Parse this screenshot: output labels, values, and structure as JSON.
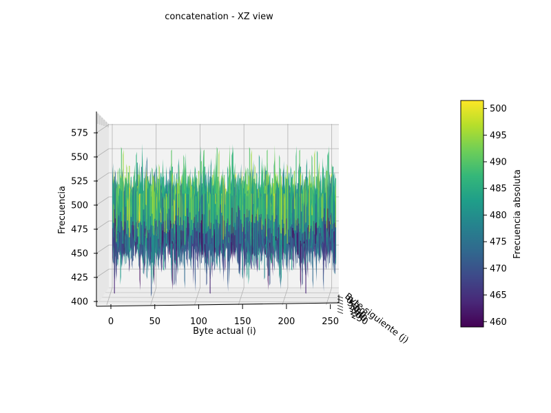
{
  "chart_data": {
    "type": "surface",
    "title": "concatenation - XZ view",
    "xlabel": "Byte actual (i)",
    "ylabel": "Byte siguiente (j)",
    "zlabel": "Frecuencia",
    "x_ticks": [
      "0",
      "50",
      "100",
      "150",
      "200",
      "250"
    ],
    "y_ticks": [
      "0",
      "50",
      "100",
      "150",
      "200",
      "250"
    ],
    "z_ticks": [
      "400",
      "425",
      "450",
      "475",
      "500",
      "525",
      "550",
      "575"
    ],
    "xlim": [
      0,
      255
    ],
    "ylim": [
      0,
      255
    ],
    "zlim": [
      400,
      585
    ],
    "view": "XZ (elevation 0, azimuth -90)",
    "colormap": "viridis",
    "colorbar": {
      "label": "Frecuencia absoluta",
      "ticks": [
        "460",
        "465",
        "470",
        "475",
        "480",
        "485",
        "490",
        "495",
        "500"
      ],
      "range": [
        459,
        501.5
      ]
    },
    "surface_summary": {
      "typical_low": 450,
      "typical_high": 522,
      "mean": 480,
      "min_peak": 410,
      "max_peak": 565
    },
    "grid": true,
    "colors": {
      "pane": "#f2f2f2",
      "grid": "#b0b0b0",
      "viridis": [
        "#440154",
        "#482878",
        "#3e4989",
        "#31688e",
        "#26828e",
        "#1f9e89",
        "#35b779",
        "#6ece58",
        "#b5de2b",
        "#fde725"
      ]
    }
  }
}
